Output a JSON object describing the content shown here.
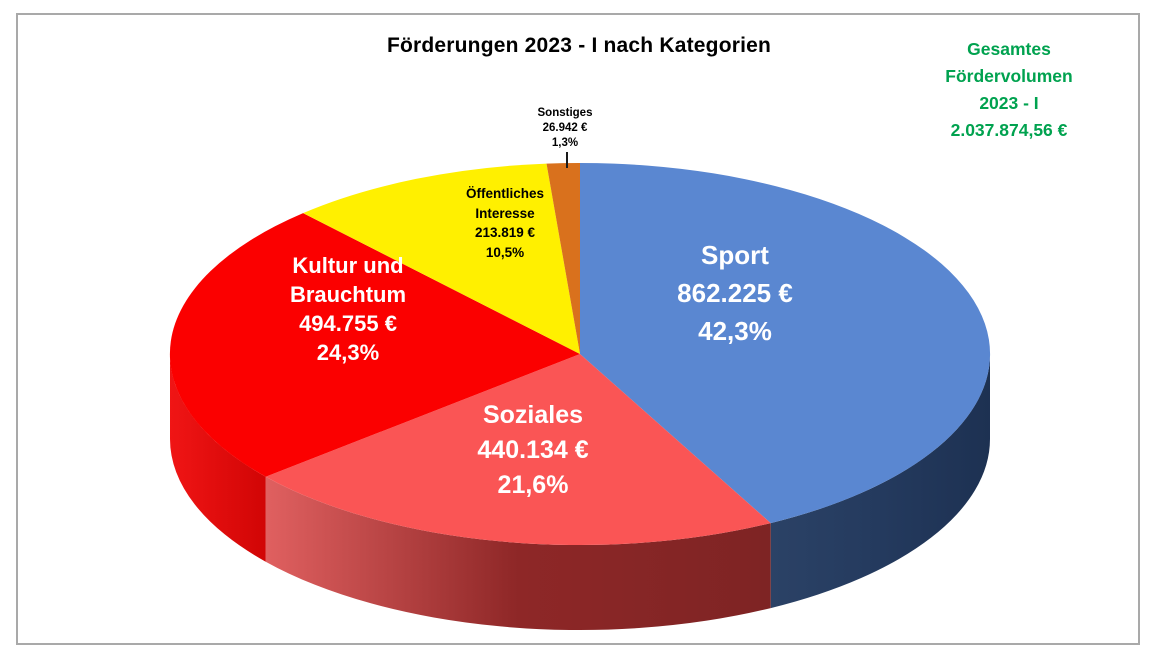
{
  "title": "Förderungen 2023 - I nach Kategorien",
  "total_box": {
    "line1": "Gesamtes",
    "line2": "Fördervolumen",
    "line3": "2023 - I",
    "line4": "2.037.874,56 €",
    "color": "#00A24F"
  },
  "frame": {
    "border_color": "#A9A9A9"
  },
  "chart_data": {
    "type": "pie",
    "style": "3d",
    "title": "Förderungen 2023 - I nach Kategorien",
    "rotation": "clockwise-from-12-oclock",
    "total_label": "Gesamtes Fördervolumen 2023 - I",
    "total_value_text": "2.037.874,56 €",
    "total_value": 2037874.56,
    "slices": [
      {
        "id": "sport",
        "label": "Sport",
        "value": 862225,
        "value_text": "862.225 €",
        "pct": 42.3,
        "pct_text": "42,3%",
        "color": "#5A87D1",
        "label_color": "#FFFFFF",
        "side": [
          {
            "offset": "0",
            "color": "#2B4266"
          },
          {
            "offset": "0.5",
            "color": "#243A5E"
          },
          {
            "offset": "1",
            "color": "#1D3152"
          }
        ]
      },
      {
        "id": "soziales",
        "label": "Soziales",
        "value": 440134,
        "value_text": "440.134 €",
        "pct": 21.6,
        "pct_text": "21,6%",
        "color": "#FA5555",
        "label_color": "#FFFFFF",
        "side": [
          {
            "offset": "0",
            "color": "#E06060"
          },
          {
            "offset": "0.5",
            "color": "#8E2727"
          },
          {
            "offset": "1",
            "color": "#7E2424"
          }
        ]
      },
      {
        "id": "kultur-und-brauchtum",
        "label": "Kultur und Brauchtum",
        "value": 494755,
        "value_text": "494.755 €",
        "pct": 24.3,
        "pct_text": "24,3%",
        "color": "#FB0000",
        "label_color": "#FFFFFF",
        "side": [
          {
            "offset": "0",
            "color": "#F01515"
          },
          {
            "offset": "1",
            "color": "#D10505"
          }
        ]
      },
      {
        "id": "oeffentliches-interesse",
        "label": "Öffentliches Interesse",
        "value": 213819,
        "value_text": "213.819 €",
        "pct": 10.5,
        "pct_text": "10,5%",
        "color": "#FFF000",
        "label_color": "#000000"
      },
      {
        "id": "sonstiges",
        "label": "Sonstiges",
        "value": 26942,
        "value_text": "26.942 €",
        "pct": 1.3,
        "pct_text": "1,3%",
        "color": "#D9711D",
        "label_color": "#000000"
      }
    ],
    "geometry_note": "3d pie, depth below ellipse, no exploded slices"
  }
}
